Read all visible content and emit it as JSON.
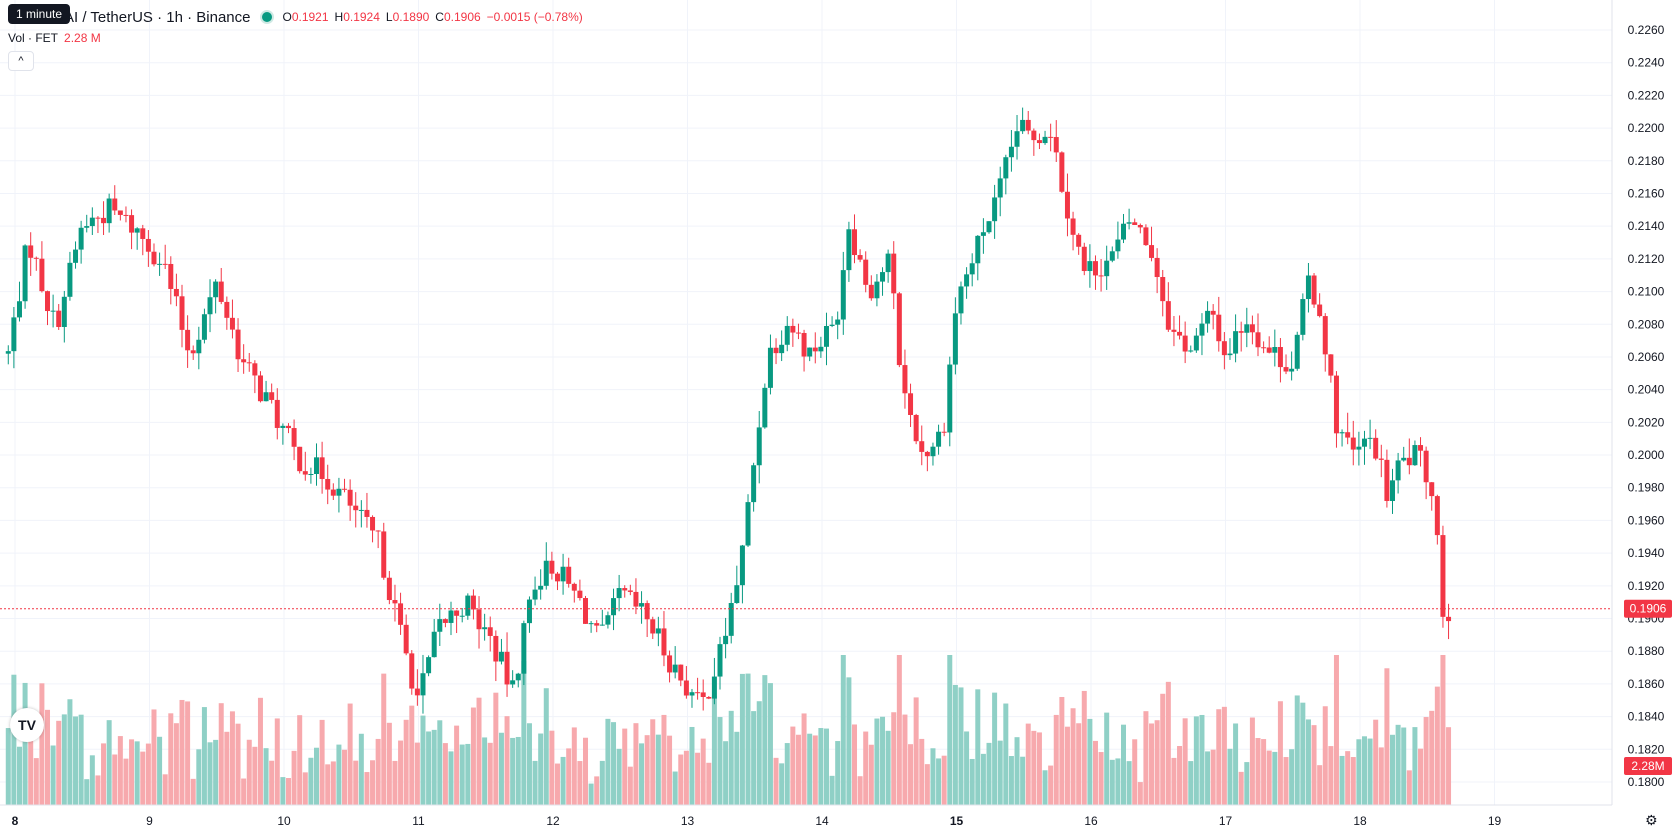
{
  "header": {
    "tooltip": "1 minute",
    "symbol_title": "AI / TetherUS · 1h · Binance",
    "open_label": "O",
    "open_value": "0.1921",
    "high_label": "H",
    "high_value": "0.1924",
    "low_label": "L",
    "low_value": "0.1890",
    "close_label": "C",
    "close_value": "0.1906",
    "change": "−0.0015 (−0.78%)",
    "volume_label": "Vol · FET",
    "volume_value": "2.28 M",
    "collapse_icon": "chevron-up-icon"
  },
  "logo_text": "TV",
  "colors": {
    "up": "#089981",
    "down": "#f23645",
    "up_volume": "#8fd0c6",
    "down_volume": "#f7a9ad",
    "grid": "#f0f3fa"
  },
  "chart_data": {
    "type": "candlestick",
    "ylim": [
      0.1795,
      0.2265
    ],
    "y_ticks": [
      "0.2260",
      "0.2240",
      "0.2220",
      "0.2200",
      "0.2180",
      "0.2160",
      "0.2140",
      "0.2120",
      "0.2100",
      "0.2080",
      "0.2060",
      "0.2040",
      "0.2020",
      "0.2000",
      "0.1980",
      "0.1960",
      "0.1940",
      "0.1920",
      "0.1900",
      "0.1880",
      "0.1860",
      "0.1840",
      "0.1820",
      "0.1800"
    ],
    "x_ticks": [
      "8",
      "9",
      "10",
      "11",
      "12",
      "13",
      "14",
      "15",
      "16",
      "17",
      "18",
      "19"
    ],
    "x_tick_values": [
      8,
      9,
      10,
      11,
      12,
      13,
      14,
      15,
      16,
      17,
      18,
      19
    ],
    "bold_x_ticks": [
      "8",
      "15"
    ],
    "last_price": "0.1906",
    "last_volume": "2.28M",
    "anchors": [
      [
        7.95,
        0.2062
      ],
      [
        8.1,
        0.2132
      ],
      [
        8.3,
        0.2078
      ],
      [
        8.5,
        0.214
      ],
      [
        8.7,
        0.215
      ],
      [
        8.9,
        0.2138
      ],
      [
        9.1,
        0.2118
      ],
      [
        9.3,
        0.2062
      ],
      [
        9.5,
        0.2105
      ],
      [
        9.7,
        0.2055
      ],
      [
        9.9,
        0.203
      ],
      [
        10.1,
        0.1998
      ],
      [
        10.3,
        0.1988
      ],
      [
        10.5,
        0.1968
      ],
      [
        10.7,
        0.1946
      ],
      [
        10.9,
        0.188
      ],
      [
        11.0,
        0.185
      ],
      [
        11.15,
        0.1895
      ],
      [
        11.35,
        0.191
      ],
      [
        11.55,
        0.1885
      ],
      [
        11.7,
        0.1855
      ],
      [
        11.85,
        0.1922
      ],
      [
        12.0,
        0.1933
      ],
      [
        12.2,
        0.191
      ],
      [
        12.35,
        0.1885
      ],
      [
        12.5,
        0.1915
      ],
      [
        12.7,
        0.19
      ],
      [
        12.9,
        0.187
      ],
      [
        13.1,
        0.1845
      ],
      [
        13.25,
        0.188
      ],
      [
        13.4,
        0.1935
      ],
      [
        13.5,
        0.2
      ],
      [
        13.6,
        0.2062
      ],
      [
        13.75,
        0.2082
      ],
      [
        13.9,
        0.2062
      ],
      [
        14.1,
        0.208
      ],
      [
        14.2,
        0.2142
      ],
      [
        14.35,
        0.21
      ],
      [
        14.5,
        0.212
      ],
      [
        14.6,
        0.204
      ],
      [
        14.75,
        0.2
      ],
      [
        14.9,
        0.2015
      ],
      [
        15.0,
        0.2095
      ],
      [
        15.1,
        0.2115
      ],
      [
        15.2,
        0.2138
      ],
      [
        15.3,
        0.2155
      ],
      [
        15.45,
        0.22
      ],
      [
        15.55,
        0.2195
      ],
      [
        15.7,
        0.22
      ],
      [
        15.8,
        0.216
      ],
      [
        15.95,
        0.2112
      ],
      [
        16.15,
        0.212
      ],
      [
        16.3,
        0.2145
      ],
      [
        16.45,
        0.2125
      ],
      [
        16.6,
        0.2075
      ],
      [
        16.75,
        0.2065
      ],
      [
        16.9,
        0.2088
      ],
      [
        17.0,
        0.206
      ],
      [
        17.15,
        0.2085
      ],
      [
        17.3,
        0.2065
      ],
      [
        17.5,
        0.2055
      ],
      [
        17.62,
        0.2108
      ],
      [
        17.72,
        0.2082
      ],
      [
        17.82,
        0.202
      ],
      [
        17.95,
        0.2
      ],
      [
        18.1,
        0.201
      ],
      [
        18.2,
        0.1975
      ],
      [
        18.3,
        0.1995
      ],
      [
        18.42,
        0.2
      ],
      [
        18.55,
        0.1978
      ],
      [
        18.62,
        0.1902
      ],
      [
        18.67,
        0.1906
      ]
    ]
  }
}
